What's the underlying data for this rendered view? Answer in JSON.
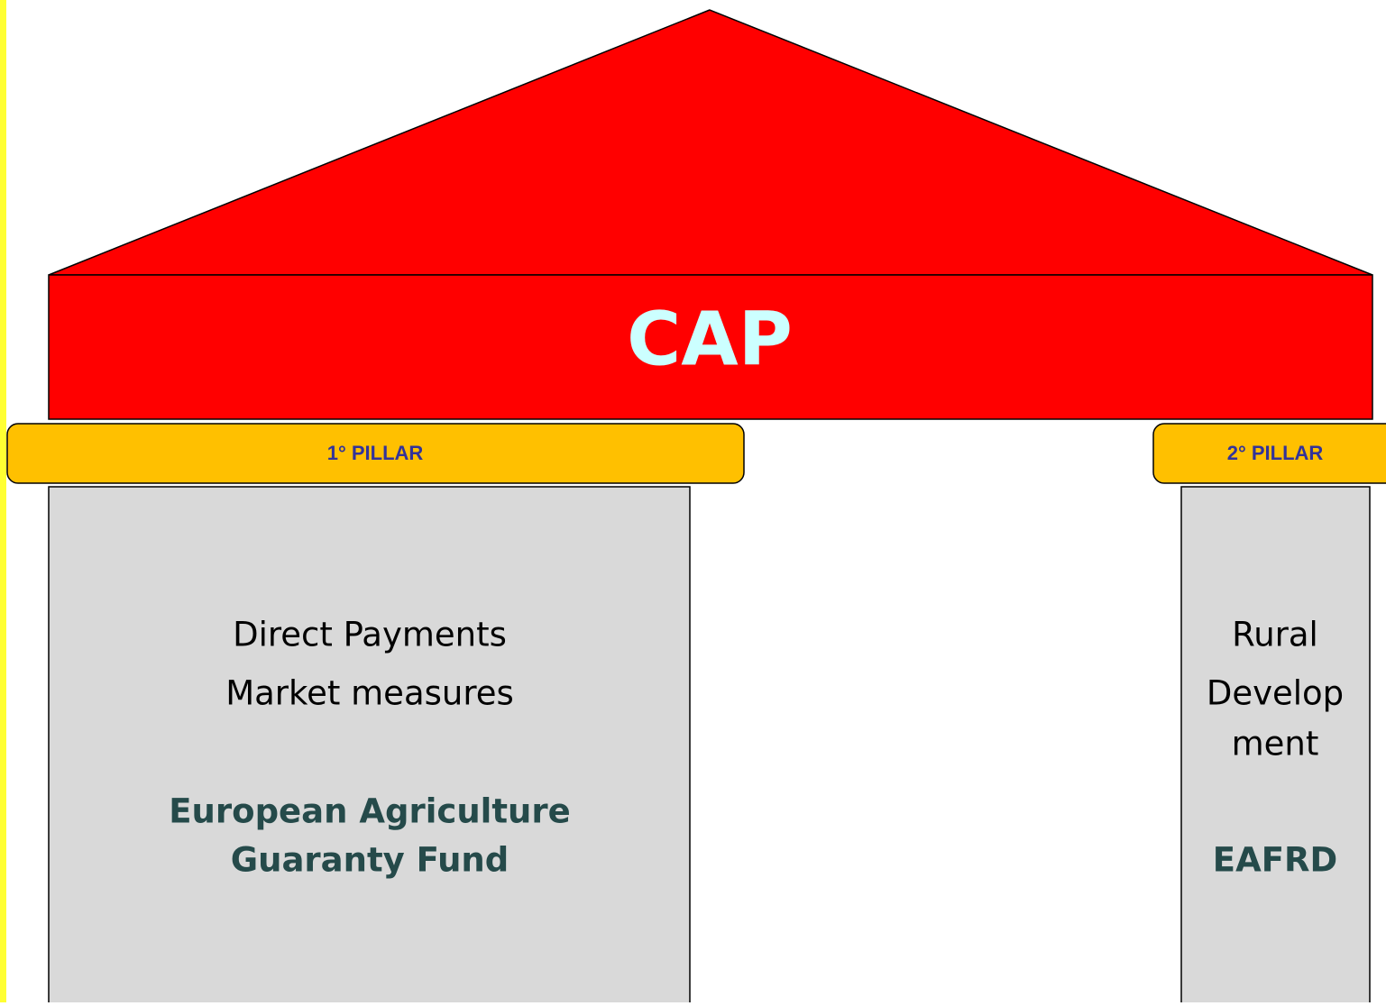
{
  "title": "CAP",
  "pillars": [
    {
      "label": "1° PILLAR",
      "lines": [
        "Direct Payments",
        "Market measures"
      ],
      "fund": [
        "European Agriculture",
        "Guaranty Fund"
      ]
    },
    {
      "label": "2° PILLAR",
      "lines": [
        "Rural",
        "Develop",
        "ment"
      ],
      "fund": [
        "EAFRD"
      ]
    }
  ]
}
